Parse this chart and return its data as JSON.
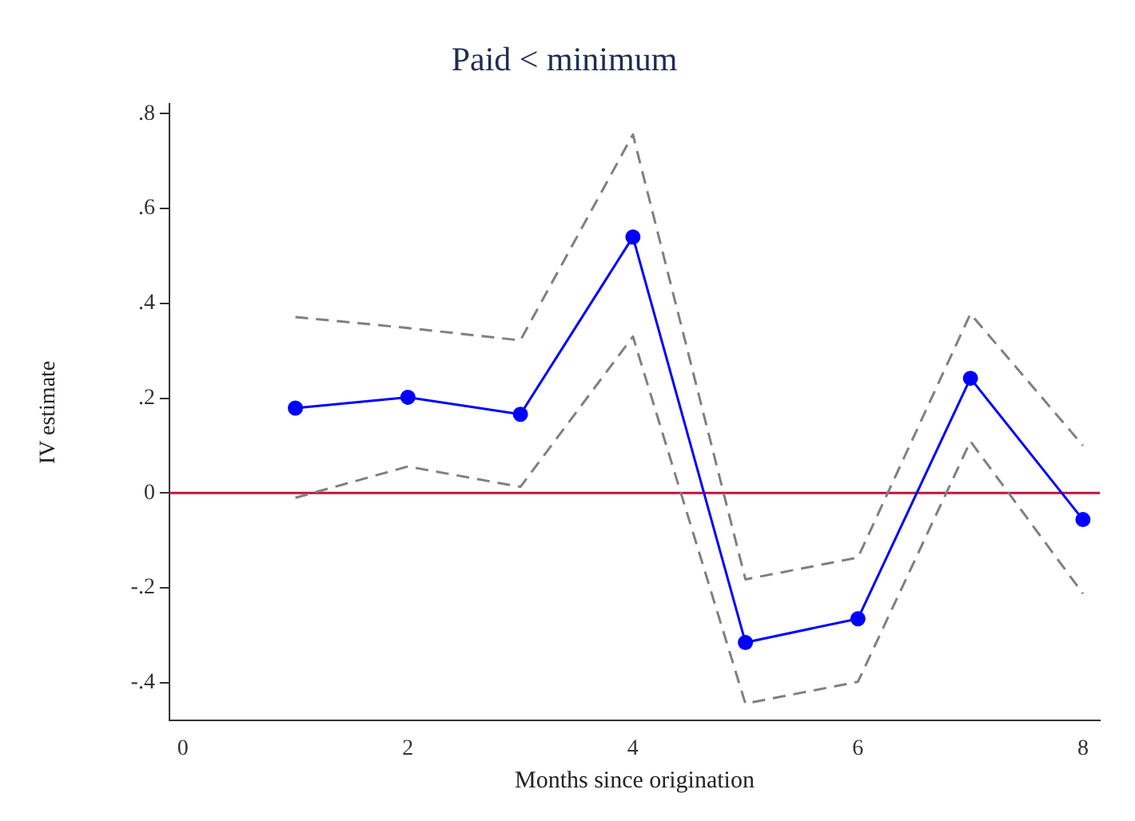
{
  "chart_data": {
    "type": "line",
    "title": "Paid < minimum",
    "xlabel": "Months since origination",
    "ylabel": "IV estimate",
    "x": [
      1,
      2,
      3,
      4,
      5,
      6,
      7,
      8
    ],
    "series": [
      {
        "color": "#0000ff",
        "values": [
          0.179,
          0.202,
          0.166,
          0.54,
          -0.315,
          -0.265,
          0.242,
          -0.056
        ],
        "marker": "circle",
        "line_style": "solid"
      },
      {
        "color": "#808080",
        "values": [
          0.371,
          0.348,
          0.322,
          0.756,
          -0.182,
          -0.136,
          0.378,
          0.1
        ],
        "marker": "none",
        "line_style": "dashed"
      },
      {
        "color": "#808080",
        "values": [
          -0.01,
          0.056,
          0.013,
          0.33,
          -0.444,
          -0.398,
          0.109,
          -0.212
        ],
        "marker": "none",
        "line_style": "dashed"
      }
    ],
    "xlim": [
      -0.12,
      8.15
    ],
    "xticks": [
      0,
      2,
      4,
      6,
      8
    ],
    "ylim": [
      -0.48,
      0.82
    ],
    "yticks": [
      {
        "value": -0.4,
        "label": "-.4"
      },
      {
        "value": -0.2,
        "label": "-.2"
      },
      {
        "value": 0,
        "label": "0"
      },
      {
        "value": 0.2,
        "label": ".2"
      },
      {
        "value": 0.4,
        "label": ".4"
      },
      {
        "value": 0.6,
        "label": ".6"
      },
      {
        "value": 0.8,
        "label": ".8"
      }
    ],
    "ref_lines": [
      {
        "axis": "y",
        "value": 0,
        "color": "#c0143c"
      }
    ],
    "grid": false,
    "legend": false
  }
}
